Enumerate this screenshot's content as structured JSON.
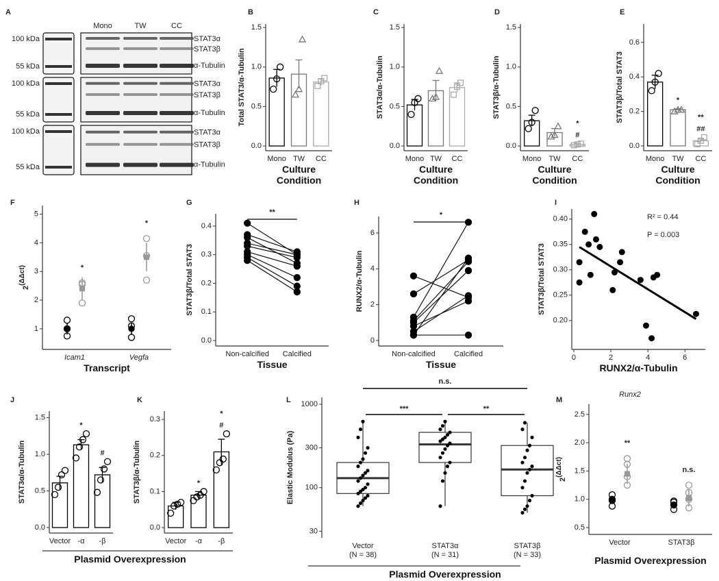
{
  "blot": {
    "panel": "A",
    "lanes": [
      "Mono",
      "TW",
      "CC"
    ],
    "rows": [
      {
        "markers": [
          "100 kDa",
          "55 kDa"
        ],
        "bands": [
          "STAT3α",
          "STAT3β",
          "α-Tubulin"
        ]
      },
      {
        "markers": [
          "100 kDa",
          "55 kDa"
        ],
        "bands": [
          "STAT3α",
          "STAT3β",
          "α-Tubulin"
        ]
      },
      {
        "markers": [
          "100 kDa",
          "55 kDa"
        ],
        "bands": [
          "STAT3α",
          "STAT3β",
          "α-Tubulin"
        ]
      }
    ]
  },
  "chart_data": [
    {
      "panel": "B",
      "type": "bar",
      "ylabel": "Total STAT3/α-Tubulin",
      "xlabel": "Culture Condition",
      "categories": [
        "Mono",
        "TW",
        "CC"
      ],
      "values": [
        0.86,
        0.91,
        0.81
      ],
      "errors": [
        0.11,
        0.18,
        0.04
      ],
      "points": [
        [
          0.72,
          0.85,
          1.0
        ],
        [
          0.65,
          0.72,
          1.35
        ],
        [
          0.76,
          0.82,
          0.86
        ]
      ],
      "colors": [
        "#000000",
        "#777777",
        "#aaaaaa"
      ],
      "markers": [
        "circle",
        "triangle",
        "square"
      ],
      "annotations": [
        [],
        [],
        []
      ],
      "ylim": [
        -0.06,
        1.545
      ],
      "yticks": [
        {
          "value": 0,
          "label": "0.0"
        },
        0.5,
        {
          "value": 1,
          "label": "1.0"
        },
        1.5
      ]
    },
    {
      "panel": "C",
      "type": "bar",
      "ylabel": "STAT3α/α-Tubulin",
      "xlabel": "Culture Condition",
      "categories": [
        "Mono",
        "TW",
        "CC"
      ],
      "values": [
        0.52,
        0.7,
        0.74
      ],
      "errors": [
        0.07,
        0.13,
        0.06
      ],
      "points": [
        [
          0.4,
          0.55,
          0.6
        ],
        [
          0.6,
          0.62,
          0.95
        ],
        [
          0.65,
          0.75,
          0.8
        ]
      ],
      "colors": [
        "#000000",
        "#777777",
        "#aaaaaa"
      ],
      "markers": [
        "circle",
        "triangle",
        "square"
      ],
      "annotations": [
        [],
        [],
        []
      ],
      "ylim": [
        -0.06,
        1.545
      ],
      "yticks": [
        {
          "value": 0,
          "label": "0.0"
        },
        0.5,
        {
          "value": 1,
          "label": "1.0"
        },
        1.5
      ]
    },
    {
      "panel": "D",
      "type": "bar",
      "ylabel": "STAT3β/α-Tubulin",
      "xlabel": "Culture Condition",
      "categories": [
        "Mono",
        "TW",
        "CC"
      ],
      "values": [
        0.32,
        0.17,
        0.02
      ],
      "errors": [
        0.07,
        0.05,
        0.01
      ],
      "points": [
        [
          0.22,
          0.3,
          0.45
        ],
        [
          0.12,
          0.14,
          0.25
        ],
        [
          0.01,
          0.02,
          0.03
        ]
      ],
      "colors": [
        "#000000",
        "#777777",
        "#aaaaaa"
      ],
      "markers": [
        "circle",
        "triangle",
        "square"
      ],
      "annotations": [
        [],
        [],
        [
          "*",
          "#"
        ]
      ],
      "ylim": [
        -0.06,
        1.545
      ],
      "yticks": [
        {
          "value": 0,
          "label": "0.0"
        },
        0.5,
        {
          "value": 1,
          "label": "1.0"
        },
        1.5
      ]
    },
    {
      "panel": "E",
      "type": "bar",
      "ylabel": "STAT3β/Total STAT3",
      "xlabel": "Culture Condition",
      "categories": [
        "Mono",
        "TW",
        "CC"
      ],
      "values": [
        0.37,
        0.21,
        0.03
      ],
      "errors": [
        0.04,
        0.005,
        0.01
      ],
      "points": [
        [
          0.32,
          0.37,
          0.42
        ],
        [
          0.2,
          0.21,
          0.21
        ],
        [
          0.01,
          0.03,
          0.05
        ]
      ],
      "colors": [
        "#000000",
        "#777777",
        "#aaaaaa"
      ],
      "markers": [
        "circle",
        "triangle",
        "square"
      ],
      "annotations": [
        [],
        [
          "*"
        ],
        [
          "**",
          "##"
        ]
      ],
      "ylim": [
        -0.028,
        0.707
      ],
      "yticks": [
        {
          "value": 0,
          "label": "0.0"
        },
        0.2,
        0.4,
        0.6
      ]
    },
    {
      "panel": "F",
      "type": "dot_mean",
      "ylabel": "2",
      "ylabel_sup": "(ΔΔct)",
      "xlabel": "Transcript",
      "categories": [
        "Icam1",
        "Vegfa"
      ],
      "italic_categories": true,
      "groups": [
        {
          "color": "#000000",
          "mean_shape": "circle",
          "means": [
            1.0,
            1.0
          ],
          "errors": [
            0.2,
            0.2
          ],
          "points": [
            [
              0.75,
              1.0,
              1.3
            ],
            [
              0.7,
              1.1,
              1.35
            ]
          ]
        },
        {
          "color": "#999999",
          "mean_shape": "square",
          "means": [
            2.4,
            3.5
          ],
          "errors": [
            0.4,
            0.5
          ],
          "points": [
            [
              1.9,
              2.55,
              2.6
            ],
            [
              2.7,
              3.55,
              4.15
            ]
          ]
        }
      ],
      "annotations": [
        [
          "*"
        ],
        [
          "*"
        ]
      ],
      "ylim": [
        0.28,
        5.3
      ],
      "yticks": [
        1,
        2,
        3,
        4,
        5
      ]
    },
    {
      "panel": "G",
      "type": "paired",
      "ylabel": "STAT3β/Total STAT3",
      "xlabel": "Tissue",
      "categories": [
        "Non-calcified",
        "Calcified"
      ],
      "values": [
        [
          0.41,
          0.37,
          0.36,
          0.34,
          0.33,
          0.31,
          0.3,
          0.29,
          0.28
        ],
        [
          0.3,
          0.31,
          0.27,
          0.3,
          0.29,
          0.26,
          0.22,
          0.19,
          0.17
        ]
      ],
      "annotation": "**",
      "ylim": [
        -0.019,
        0.443
      ],
      "yticks": [
        {
          "value": 0,
          "label": "0.0"
        },
        0.1,
        0.2,
        0.3,
        0.4
      ]
    },
    {
      "panel": "H",
      "type": "paired",
      "ylabel": "RUNX2/α-Tubulin",
      "xlabel": "Tissue",
      "categories": [
        "Non-calcified",
        "Calcified"
      ],
      "values": [
        [
          3.6,
          2.6,
          1.3,
          1.1,
          1.0,
          0.8,
          0.5,
          0.3,
          0.3
        ],
        [
          2.4,
          4.5,
          6.6,
          4.4,
          3.9,
          2.2,
          2.5,
          0.3,
          4.6
        ]
      ],
      "annotation": "*",
      "ylim": [
        -0.31,
        6.92
      ],
      "yticks": [
        0,
        2,
        4,
        6
      ]
    },
    {
      "panel": "I",
      "type": "scatter",
      "ylabel": "STAT3β/Total STAT3",
      "xlabel": "RUNX2/α-Tubulin",
      "x": [
        0.3,
        0.3,
        0.6,
        0.8,
        0.9,
        1.1,
        1.2,
        1.4,
        2.1,
        2.2,
        2.5,
        2.6,
        3.6,
        3.9,
        4.2,
        4.3,
        4.5,
        6.6
      ],
      "y": [
        0.315,
        0.275,
        0.375,
        0.35,
        0.29,
        0.41,
        0.36,
        0.345,
        0.26,
        0.295,
        0.315,
        0.335,
        0.28,
        0.19,
        0.165,
        0.285,
        0.29,
        0.213
      ],
      "fit_x": [
        0.3,
        6.6
      ],
      "fit_y": [
        0.345,
        0.203
      ],
      "annotations": [
        "R² = 0.44",
        "P = 0.003"
      ],
      "xlim": [
        -0.11,
        7.1
      ],
      "xticks": [
        0,
        2,
        4,
        6
      ],
      "ylim": [
        0.143,
        0.42
      ],
      "yticks": [
        {
          "value": 0.2,
          "label": "0.20"
        },
        0.25,
        {
          "value": 0.3,
          "label": "0.30"
        },
        0.35,
        {
          "value": 0.4,
          "label": "0.40"
        }
      ]
    },
    {
      "panel": "J",
      "type": "bar",
      "ylabel": "STAT3α/α-Tubulin",
      "xlabel": "Plasmid Overexpression",
      "categories": [
        "Vector",
        "-α",
        "-β"
      ],
      "values": [
        0.61,
        1.13,
        0.72
      ],
      "errors": [
        0.09,
        0.07,
        0.1
      ],
      "points": [
        [
          0.45,
          0.55,
          0.72,
          0.78
        ],
        [
          0.95,
          1.1,
          1.2,
          1.28
        ],
        [
          0.48,
          0.65,
          0.8,
          0.9
        ]
      ],
      "colors": [
        "#000000",
        "#000000",
        "#000000"
      ],
      "markers": [
        "circle",
        "circle",
        "circle"
      ],
      "annotations": [
        [],
        [
          "*"
        ],
        [
          "#"
        ]
      ],
      "ylim": [
        -0.075,
        1.59
      ],
      "yticks": [
        {
          "value": 0,
          "label": "0.0"
        },
        0.5,
        {
          "value": 1,
          "label": "1.0"
        },
        1.5
      ]
    },
    {
      "panel": "K",
      "type": "bar",
      "ylabel": "STAT3β/α-Tubulin",
      "categories": [
        "Vector",
        "-α",
        "-β"
      ],
      "values": [
        0.06,
        0.09,
        0.21
      ],
      "errors": [
        0.01,
        0.01,
        0.035
      ],
      "points": [
        [
          0.04,
          0.06,
          0.065,
          0.07
        ],
        [
          0.075,
          0.085,
          0.09,
          0.1
        ],
        [
          0.16,
          0.18,
          0.19,
          0.26
        ]
      ],
      "colors": [
        "#000000",
        "#000000",
        "#000000"
      ],
      "markers": [
        "circle",
        "circle",
        "circle"
      ],
      "annotations": [
        [],
        [
          "*"
        ],
        [
          "*",
          "#"
        ]
      ],
      "ylim": [
        -0.015,
        0.323
      ],
      "yticks": [
        {
          "value": 0,
          "label": "0.0"
        },
        0.1,
        0.2,
        0.3
      ]
    },
    {
      "panel": "L",
      "type": "box",
      "ylabel": "Elastic Modulus (Pa)",
      "xlabel": "Plasmid Overexpression",
      "categories": [
        "Vector",
        "STAT3α",
        "STAT3β"
      ],
      "n_labels": [
        "(N = 38)",
        "(N = 31)",
        "(N = 33)"
      ],
      "boxes": [
        {
          "whislo": 60,
          "q1": 85,
          "median": 130,
          "q3": 200,
          "whishi": 620
        },
        {
          "whislo": 60,
          "q1": 200,
          "median": 330,
          "q3": 460,
          "whishi": 620
        },
        {
          "whislo": 50,
          "q1": 80,
          "median": 165,
          "q3": 320,
          "whishi": 600
        }
      ],
      "points": [
        [
          60,
          65,
          70,
          75,
          80,
          85,
          90,
          95,
          100,
          110,
          120,
          130,
          140,
          150,
          160,
          180,
          200,
          220,
          260,
          300,
          400,
          500,
          620
        ],
        [
          60,
          120,
          150,
          180,
          200,
          230,
          260,
          290,
          320,
          340,
          360,
          380,
          400,
          430,
          460,
          500,
          550,
          620
        ],
        [
          50,
          55,
          60,
          70,
          80,
          100,
          120,
          150,
          165,
          180,
          200,
          230,
          280,
          320,
          400,
          500,
          600
        ]
      ],
      "comparisons": [
        {
          "groups": [
            "Vector",
            "STAT3α"
          ],
          "label": "***"
        },
        {
          "groups": [
            "STAT3α",
            "STAT3β"
          ],
          "label": "**"
        },
        {
          "groups": [
            "Vector",
            "STAT3β"
          ],
          "label": "n.s."
        }
      ],
      "log_y": true,
      "ylim": [
        25,
        1208
      ],
      "yticks": [
        30,
        100,
        300,
        1000
      ]
    },
    {
      "panel": "M",
      "type": "dot_mean",
      "subtitle": "Runx2",
      "ylabel": "2",
      "ylabel_sup": "(ΔΔct)",
      "xlabel": "Plasmid Overexpression",
      "categories": [
        "Vector",
        "STAT3β"
      ],
      "groups": [
        {
          "color": "#000000",
          "mean_shape": "circle",
          "means": [
            1.0,
            0.9
          ],
          "errors": [
            0.05,
            0.05
          ],
          "points": [
            [
              0.88,
              0.98,
              1.0,
              1.08
            ],
            [
              0.82,
              0.9,
              0.95,
              0.97
            ]
          ]
        },
        {
          "color": "#999999",
          "mean_shape": "square",
          "means": [
            1.45,
            1.02
          ],
          "errors": [
            0.18,
            0.15
          ],
          "points": [
            [
              1.25,
              1.4,
              1.62,
              1.72
            ],
            [
              0.85,
              1.0,
              1.12,
              1.25
            ]
          ]
        }
      ],
      "annotations": [
        [
          "**"
        ],
        [
          "n.s."
        ]
      ],
      "ylim": [
        0.38,
        2.68
      ],
      "yticks": [
        0.5,
        {
          "value": 1,
          "label": "1.0"
        },
        1.5,
        {
          "value": 2,
          "label": "2.0"
        },
        2.5
      ]
    }
  ]
}
